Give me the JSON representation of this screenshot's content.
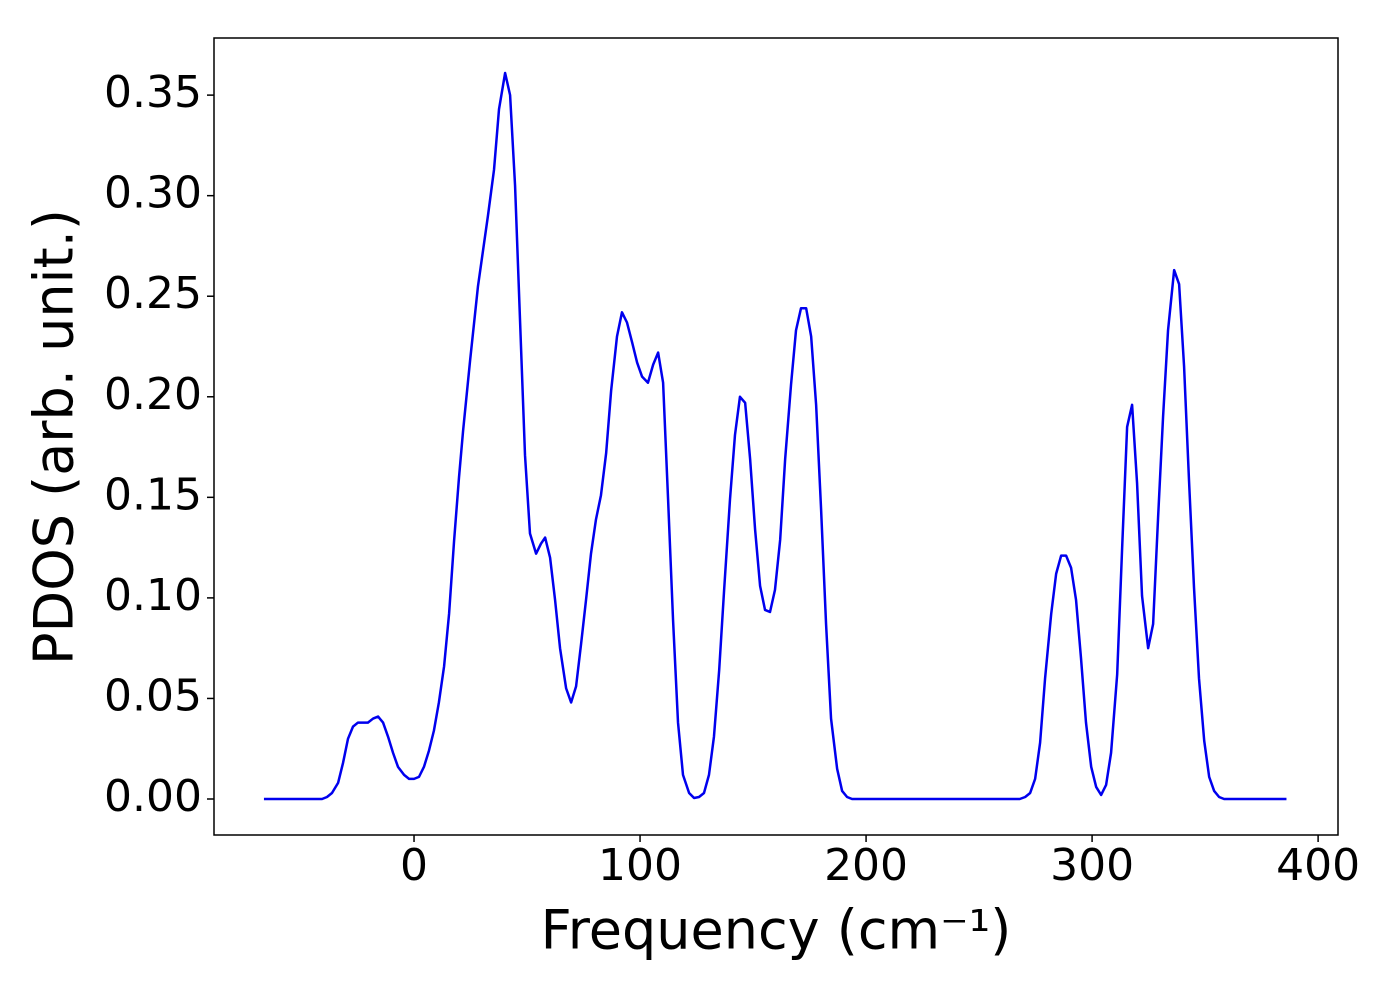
{
  "chart_data": {
    "type": "line",
    "xlabel": "Frequency (cm⁻¹)",
    "ylabel": "PDOS (arb. unit.)",
    "xlim": [
      -88.5,
      408.8
    ],
    "ylim": [
      -0.0179,
      0.3784
    ],
    "xticks": [
      0,
      100,
      200,
      300,
      400
    ],
    "yticks": [
      {
        "value": 0,
        "label": "0.00"
      },
      {
        "value": 0.05,
        "label": "0.05"
      },
      {
        "value": 0.1,
        "label": "0.10"
      },
      {
        "value": 0.15,
        "label": "0.15"
      },
      {
        "value": 0.2,
        "label": "0.20"
      },
      {
        "value": 0.25,
        "label": "0.25"
      },
      {
        "value": 0.3,
        "label": "0.30"
      },
      {
        "value": 0.35,
        "label": "0.35"
      }
    ],
    "grid": false,
    "series": [
      {
        "color": "#0000ee",
        "x": [
          -66.4,
          -40.7,
          -38.5,
          -36.3,
          -33.6,
          -31.4,
          -29.2,
          -27,
          -24.8,
          -22.6,
          -20.4,
          -18.1,
          -15.9,
          -13.7,
          -11.5,
          -9.3,
          -7.1,
          -4.4,
          -2.2,
          0,
          2.2,
          4.4,
          6.6,
          8.8,
          11,
          13.3,
          15.5,
          17.7,
          19.9,
          21.7,
          24.8,
          28.3,
          32.7,
          35.4,
          37.6,
          40.3,
          42.5,
          44.7,
          46.9,
          49.1,
          51.3,
          54,
          56.2,
          58,
          60.2,
          62.4,
          64.6,
          67.3,
          69.5,
          71.7,
          73.9,
          76.1,
          78.3,
          80.5,
          82.7,
          85,
          87.2,
          89.8,
          92,
          94.2,
          96.5,
          98.7,
          100.9,
          103.5,
          105.8,
          108,
          110.2,
          112.4,
          114.6,
          116.8,
          119,
          121.7,
          123.9,
          126.1,
          128.3,
          130.5,
          132.7,
          135,
          137.2,
          139.8,
          142,
          144.2,
          146.5,
          148.7,
          150.9,
          153.1,
          155.3,
          157.5,
          159.7,
          162,
          164.2,
          166.8,
          169,
          171.2,
          173.5,
          175.7,
          177.9,
          180.1,
          182.3,
          184.5,
          187.2,
          189.4,
          191.6,
          193.8,
          268,
          270.4,
          272.6,
          274.8,
          277,
          279.2,
          281.9,
          284.1,
          286.3,
          288.5,
          290.7,
          292.9,
          295.1,
          297.3,
          299.6,
          301.8,
          304,
          306.2,
          308.4,
          311.1,
          313.3,
          315.5,
          317.7,
          319.9,
          322.1,
          324.8,
          327,
          329.2,
          331.4,
          333.6,
          336.3,
          338.5,
          340.7,
          342.9,
          345.1,
          347.3,
          349.6,
          351.8,
          354,
          356.2,
          358.4,
          386
        ],
        "values": [
          0,
          0,
          0.001,
          0.003,
          0.008,
          0.018,
          0.03,
          0.036,
          0.038,
          0.038,
          0.038,
          0.04,
          0.041,
          0.038,
          0.031,
          0.023,
          0.016,
          0.012,
          0.01,
          0.01,
          0.011,
          0.016,
          0.024,
          0.034,
          0.048,
          0.066,
          0.092,
          0.128,
          0.16,
          0.183,
          0.218,
          0.255,
          0.29,
          0.313,
          0.343,
          0.361,
          0.35,
          0.305,
          0.238,
          0.171,
          0.132,
          0.122,
          0.127,
          0.13,
          0.12,
          0.099,
          0.075,
          0.055,
          0.048,
          0.056,
          0.077,
          0.099,
          0.122,
          0.139,
          0.151,
          0.172,
          0.203,
          0.23,
          0.242,
          0.237,
          0.227,
          0.217,
          0.21,
          0.207,
          0.216,
          0.222,
          0.207,
          0.149,
          0.089,
          0.038,
          0.012,
          0.003,
          0.0005,
          0.001,
          0.003,
          0.012,
          0.031,
          0.064,
          0.104,
          0.149,
          0.181,
          0.2,
          0.197,
          0.169,
          0.134,
          0.106,
          0.094,
          0.093,
          0.104,
          0.129,
          0.169,
          0.206,
          0.233,
          0.244,
          0.244,
          0.23,
          0.196,
          0.144,
          0.087,
          0.04,
          0.015,
          0.004,
          0.001,
          0,
          0,
          0.001,
          0.003,
          0.01,
          0.028,
          0.06,
          0.092,
          0.112,
          0.121,
          0.121,
          0.115,
          0.099,
          0.07,
          0.038,
          0.016,
          0.006,
          0.002,
          0.007,
          0.023,
          0.062,
          0.125,
          0.185,
          0.196,
          0.157,
          0.101,
          0.075,
          0.087,
          0.14,
          0.19,
          0.233,
          0.263,
          0.256,
          0.215,
          0.158,
          0.105,
          0.06,
          0.029,
          0.011,
          0.004,
          0.001,
          0,
          0
        ]
      }
    ]
  }
}
